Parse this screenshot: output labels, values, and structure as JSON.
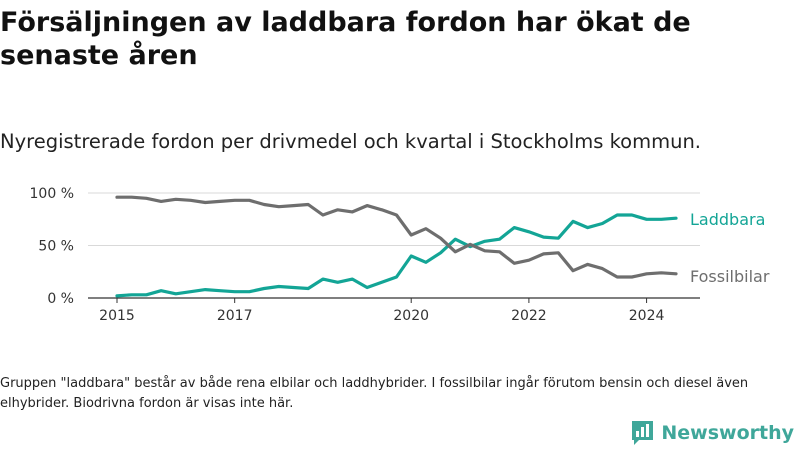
{
  "header": {
    "title": "Försäljningen av laddbara fordon har ökat de senaste åren",
    "subtitle": "Nyregistrerade fordon per drivmedel och kvartal i Stockholms kommun."
  },
  "footer": {
    "note": "Gruppen \"laddbara\" består av både rena elbilar och laddhybrider. I fossilbilar ingår förutom bensin och diesel även elhybrider. Biodrivna fordon är visas inte här.",
    "brand": "Newsworthy",
    "brand_icon": "bar-chart-logo-icon"
  },
  "chart_data": {
    "type": "line",
    "title": "Försäljningen av laddbara fordon har ökat de senaste åren",
    "subtitle": "Nyregistrerade fordon per drivmedel och kvartal i Stockholms kommun.",
    "xlabel": "",
    "ylabel": "",
    "xlim": [
      2015.0,
      2024.75
    ],
    "ylim": [
      0,
      100
    ],
    "grid": true,
    "x_ticks": [
      2015,
      2017,
      2020,
      2022,
      2024
    ],
    "x_tick_labels": [
      "2015",
      "2017",
      "2020",
      "2022",
      "2024"
    ],
    "y_ticks": [
      0,
      50,
      100
    ],
    "y_tick_labels": [
      "0 %",
      "50 %",
      "100 %"
    ],
    "x": [
      2015.0,
      2015.25,
      2015.5,
      2015.75,
      2016.0,
      2016.25,
      2016.5,
      2016.75,
      2017.0,
      2017.25,
      2017.5,
      2017.75,
      2018.0,
      2018.25,
      2018.5,
      2018.75,
      2019.0,
      2019.25,
      2019.5,
      2019.75,
      2020.0,
      2020.25,
      2020.5,
      2020.75,
      2021.0,
      2021.25,
      2021.5,
      2021.75,
      2022.0,
      2022.25,
      2022.5,
      2022.75,
      2023.0,
      2023.25,
      2023.5,
      2023.75,
      2024.0,
      2024.25,
      2024.5
    ],
    "series": [
      {
        "name": "Laddbara",
        "color": "#13a596",
        "values": [
          2,
          3,
          3,
          7,
          4,
          6,
          8,
          7,
          6,
          6,
          9,
          11,
          10,
          9,
          18,
          15,
          18,
          10,
          15,
          20,
          40,
          34,
          43,
          56,
          49,
          54,
          56,
          67,
          63,
          58,
          57,
          73,
          67,
          71,
          79,
          79,
          75,
          75,
          76
        ]
      },
      {
        "name": "Fossilbilar",
        "color": "#6e6e6e",
        "values": [
          96,
          96,
          95,
          92,
          94,
          93,
          91,
          92,
          93,
          93,
          89,
          87,
          88,
          89,
          79,
          84,
          82,
          88,
          84,
          79,
          60,
          66,
          57,
          44,
          51,
          45,
          44,
          33,
          36,
          42,
          43,
          26,
          32,
          28,
          20,
          20,
          23,
          24,
          23
        ]
      }
    ],
    "legend": "right, next to line ends"
  }
}
